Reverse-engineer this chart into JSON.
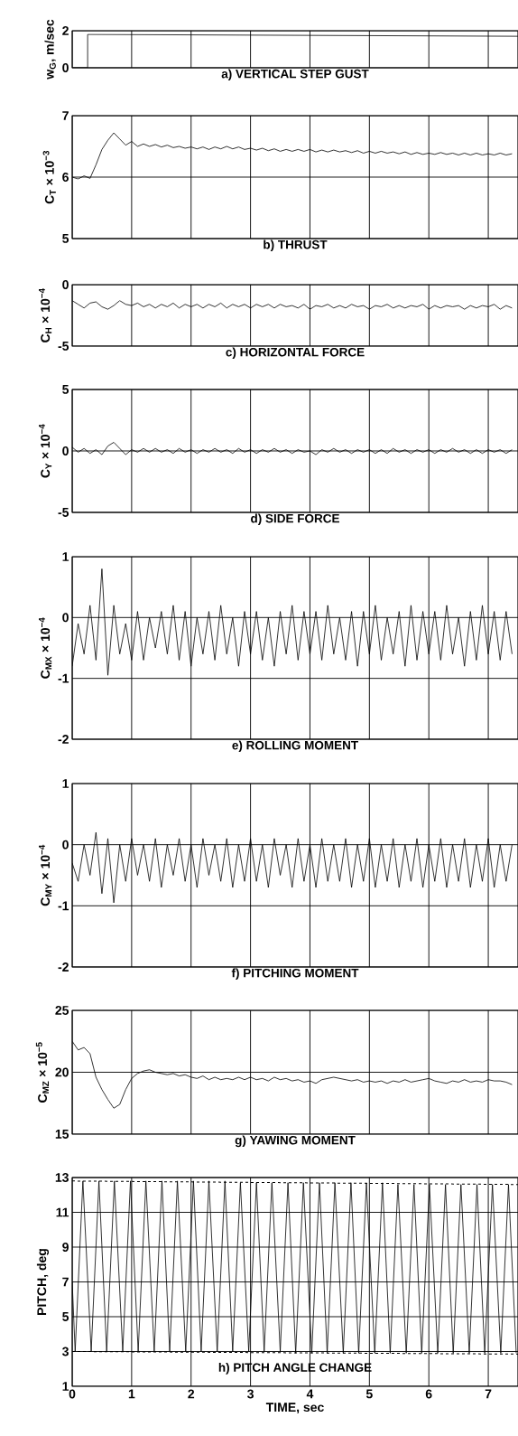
{
  "chart_data": [
    {
      "type": "line",
      "title": "a) VERTICAL STEP GUST",
      "ylabel": "w$_{G}$, m/sec",
      "xlim": [
        0,
        7.5
      ],
      "xticks": [
        0,
        1,
        2,
        3,
        4,
        5,
        6,
        7
      ],
      "ylim": [
        0,
        2
      ],
      "yticks": [
        0,
        2
      ],
      "grid": true,
      "tick_labels": "y",
      "color": "#000000",
      "x": [
        0,
        0.26,
        0.26,
        7.5
      ],
      "values": [
        0,
        0,
        1.8,
        1.7
      ]
    },
    {
      "type": "line",
      "title": "b) THRUST",
      "ylabel": "C$_{T}$ × 10$^{−3}$",
      "xlim": [
        0,
        7.5
      ],
      "xticks": [
        0,
        1,
        2,
        3,
        4,
        5,
        6,
        7
      ],
      "ylim": [
        5,
        7
      ],
      "yticks": [
        5,
        6,
        7
      ],
      "grid": true,
      "tick_labels": "y",
      "color": "#000000",
      "x": [
        0,
        0.1,
        0.2,
        0.3,
        0.4,
        0.5,
        0.6,
        0.7,
        0.8,
        0.9,
        1,
        1.1,
        1.2,
        1.3,
        1.4,
        1.5,
        1.6,
        1.7,
        1.8,
        1.9,
        2,
        2.1,
        2.2,
        2.3,
        2.4,
        2.5,
        2.6,
        2.7,
        2.8,
        2.9,
        3,
        3.1,
        3.2,
        3.3,
        3.4,
        3.5,
        3.6,
        3.7,
        3.8,
        3.9,
        4,
        4.1,
        4.2,
        4.3,
        4.4,
        4.5,
        4.6,
        4.7,
        4.8,
        4.9,
        5,
        5.1,
        5.2,
        5.3,
        5.4,
        5.5,
        5.6,
        5.7,
        5.8,
        5.9,
        6,
        6.1,
        6.2,
        6.3,
        6.4,
        6.5,
        6.6,
        6.7,
        6.8,
        6.9,
        7,
        7.1,
        7.2,
        7.3,
        7.4
      ],
      "values": [
        6.0,
        5.97,
        6.02,
        5.98,
        6.2,
        6.45,
        6.6,
        6.72,
        6.62,
        6.52,
        6.58,
        6.5,
        6.54,
        6.5,
        6.53,
        6.49,
        6.52,
        6.48,
        6.5,
        6.47,
        6.49,
        6.46,
        6.49,
        6.45,
        6.49,
        6.46,
        6.5,
        6.46,
        6.49,
        6.45,
        6.47,
        6.44,
        6.47,
        6.43,
        6.46,
        6.42,
        6.45,
        6.42,
        6.45,
        6.42,
        6.45,
        6.41,
        6.44,
        6.41,
        6.44,
        6.41,
        6.43,
        6.4,
        6.43,
        6.39,
        6.42,
        6.39,
        6.42,
        6.39,
        6.41,
        6.38,
        6.41,
        6.37,
        6.4,
        6.37,
        6.39,
        6.37,
        6.4,
        6.37,
        6.39,
        6.36,
        6.39,
        6.36,
        6.39,
        6.36,
        6.38,
        6.36,
        6.39,
        6.36,
        6.38
      ]
    },
    {
      "type": "line",
      "title": "c) HORIZONTAL FORCE",
      "ylabel": "C$_{H}$ × 10$^{−4}$",
      "xlim": [
        0,
        7.5
      ],
      "xticks": [
        0,
        1,
        2,
        3,
        4,
        5,
        6,
        7
      ],
      "ylim": [
        -5,
        0
      ],
      "yticks": [
        -5,
        0
      ],
      "grid": true,
      "tick_labels": "y",
      "color": "#000000",
      "x": [
        0,
        0.1,
        0.2,
        0.3,
        0.4,
        0.5,
        0.6,
        0.7,
        0.8,
        0.9,
        1,
        1.1,
        1.2,
        1.3,
        1.4,
        1.5,
        1.6,
        1.7,
        1.8,
        1.9,
        2,
        2.1,
        2.2,
        2.3,
        2.4,
        2.5,
        2.6,
        2.7,
        2.8,
        2.9,
        3,
        3.1,
        3.2,
        3.3,
        3.4,
        3.5,
        3.6,
        3.7,
        3.8,
        3.9,
        4,
        4.1,
        4.2,
        4.3,
        4.4,
        4.5,
        4.6,
        4.7,
        4.8,
        4.9,
        5,
        5.1,
        5.2,
        5.3,
        5.4,
        5.5,
        5.6,
        5.7,
        5.8,
        5.9,
        6,
        6.1,
        6.2,
        6.3,
        6.4,
        6.5,
        6.6,
        6.7,
        6.8,
        6.9,
        7,
        7.1,
        7.2,
        7.3,
        7.4
      ],
      "values": [
        -1.3,
        -1.6,
        -1.9,
        -1.5,
        -1.4,
        -1.8,
        -2.0,
        -1.7,
        -1.3,
        -1.6,
        -1.7,
        -1.5,
        -1.8,
        -1.6,
        -1.9,
        -1.6,
        -1.8,
        -1.5,
        -1.9,
        -1.6,
        -1.8,
        -1.6,
        -1.9,
        -1.6,
        -1.8,
        -1.5,
        -1.9,
        -1.6,
        -1.8,
        -1.6,
        -1.9,
        -1.6,
        -1.8,
        -1.6,
        -1.9,
        -1.6,
        -1.8,
        -1.7,
        -1.9,
        -1.6,
        -2.0,
        -1.7,
        -1.8,
        -1.6,
        -1.9,
        -1.7,
        -1.9,
        -1.6,
        -1.8,
        -1.7,
        -2.0,
        -1.7,
        -1.8,
        -1.6,
        -1.9,
        -1.7,
        -1.9,
        -1.7,
        -1.8,
        -1.6,
        -2.0,
        -1.7,
        -1.9,
        -1.7,
        -1.8,
        -1.7,
        -2.0,
        -1.7,
        -1.9,
        -1.7,
        -1.8,
        -1.6,
        -2.0,
        -1.7,
        -1.9
      ]
    },
    {
      "type": "line",
      "title": "d) SIDE FORCE",
      "ylabel": "C$_{Y}$ × 10$^{−4}$",
      "xlim": [
        0,
        7.5
      ],
      "xticks": [
        0,
        1,
        2,
        3,
        4,
        5,
        6,
        7
      ],
      "ylim": [
        -5,
        5
      ],
      "yticks": [
        -5,
        0,
        5
      ],
      "grid": true,
      "tick_labels": "y",
      "color": "#000000",
      "x": [
        0,
        0.1,
        0.2,
        0.3,
        0.4,
        0.5,
        0.6,
        0.7,
        0.8,
        0.9,
        1,
        1.1,
        1.2,
        1.3,
        1.4,
        1.5,
        1.6,
        1.7,
        1.8,
        1.9,
        2,
        2.1,
        2.2,
        2.3,
        2.4,
        2.5,
        2.6,
        2.7,
        2.8,
        2.9,
        3,
        3.1,
        3.2,
        3.3,
        3.4,
        3.5,
        3.6,
        3.7,
        3.8,
        3.9,
        4,
        4.1,
        4.2,
        4.3,
        4.4,
        4.5,
        4.6,
        4.7,
        4.8,
        4.9,
        5,
        5.1,
        5.2,
        5.3,
        5.4,
        5.5,
        5.6,
        5.7,
        5.8,
        5.9,
        6,
        6.1,
        6.2,
        6.3,
        6.4,
        6.5,
        6.6,
        6.7,
        6.8,
        6.9,
        7,
        7.1,
        7.2,
        7.3,
        7.4
      ],
      "values": [
        0.3,
        -0.1,
        0.2,
        -0.2,
        0.1,
        -0.3,
        0.4,
        0.7,
        0.2,
        -0.3,
        0.1,
        -0.1,
        0.2,
        -0.1,
        0.2,
        -0.1,
        0.1,
        -0.2,
        0.2,
        -0.1,
        0.1,
        -0.2,
        0.1,
        -0.1,
        0.2,
        -0.1,
        0.1,
        -0.2,
        0.2,
        -0.1,
        0.1,
        -0.2,
        0.1,
        -0.1,
        0.2,
        -0.1,
        0.1,
        -0.2,
        0.1,
        -0.1,
        0.0,
        -0.3,
        0.1,
        -0.1,
        0.2,
        -0.1,
        0.1,
        -0.2,
        0.1,
        -0.1,
        0.1,
        -0.2,
        0.1,
        -0.2,
        0.2,
        -0.1,
        0.1,
        -0.2,
        0.1,
        -0.1,
        0.1,
        -0.2,
        0.1,
        -0.1,
        0.2,
        -0.1,
        0.1,
        -0.2,
        0.1,
        -0.2,
        0.1,
        -0.1,
        0.1,
        -0.2,
        0.1
      ]
    },
    {
      "type": "line",
      "title": "e) ROLLING MOMENT",
      "ylabel": "C$_{MX}$ × 10$^{−4}$",
      "xlim": [
        0,
        7.5
      ],
      "xticks": [
        0,
        1,
        2,
        3,
        4,
        5,
        6,
        7
      ],
      "ylim": [
        -2,
        1
      ],
      "yticks": [
        -2,
        -1,
        0,
        1
      ],
      "grid": true,
      "tick_labels": "y",
      "color": "#000000",
      "x": [
        0,
        0.1,
        0.2,
        0.3,
        0.4,
        0.5,
        0.6,
        0.7,
        0.8,
        0.9,
        1,
        1.1,
        1.2,
        1.3,
        1.4,
        1.5,
        1.6,
        1.7,
        1.8,
        1.9,
        2,
        2.1,
        2.2,
        2.3,
        2.4,
        2.5,
        2.6,
        2.7,
        2.8,
        2.9,
        3,
        3.1,
        3.2,
        3.3,
        3.4,
        3.5,
        3.6,
        3.7,
        3.8,
        3.9,
        4,
        4.1,
        4.2,
        4.3,
        4.4,
        4.5,
        4.6,
        4.7,
        4.8,
        4.9,
        5,
        5.1,
        5.2,
        5.3,
        5.4,
        5.5,
        5.6,
        5.7,
        5.8,
        5.9,
        6,
        6.1,
        6.2,
        6.3,
        6.4,
        6.5,
        6.6,
        6.7,
        6.8,
        6.9,
        7,
        7.1,
        7.2,
        7.3,
        7.4
      ],
      "values": [
        -0.8,
        -0.1,
        -0.6,
        0.2,
        -0.7,
        0.8,
        -0.95,
        0.2,
        -0.6,
        -0.1,
        -0.7,
        0.1,
        -0.7,
        0.0,
        -0.5,
        0.1,
        -0.6,
        0.2,
        -0.7,
        0.1,
        -0.8,
        0.0,
        -0.6,
        0.1,
        -0.7,
        0.2,
        -0.6,
        0.0,
        -0.8,
        0.1,
        -0.6,
        0.1,
        -0.7,
        0.0,
        -0.8,
        0.1,
        -0.6,
        0.2,
        -0.7,
        0.1,
        -0.6,
        0.1,
        -0.7,
        0.2,
        -0.6,
        0.0,
        -0.7,
        0.1,
        -0.8,
        0.1,
        -0.6,
        0.2,
        -0.7,
        0.0,
        -0.6,
        0.1,
        -0.8,
        0.2,
        -0.7,
        0.1,
        -0.6,
        0.1,
        -0.7,
        0.2,
        -0.6,
        0.0,
        -0.8,
        0.1,
        -0.7,
        0.2,
        -0.6,
        0.1,
        -0.7,
        0.1,
        -0.6
      ]
    },
    {
      "type": "line",
      "title": "f) PITCHING MOMENT",
      "ylabel": "C$_{MY}$ × 10$^{−4}$",
      "xlim": [
        0,
        7.5
      ],
      "xticks": [
        0,
        1,
        2,
        3,
        4,
        5,
        6,
        7
      ],
      "ylim": [
        -2,
        1
      ],
      "yticks": [
        -2,
        -1,
        0,
        1
      ],
      "grid": true,
      "tick_labels": "y",
      "color": "#000000",
      "x": [
        0,
        0.1,
        0.2,
        0.3,
        0.4,
        0.5,
        0.6,
        0.7,
        0.8,
        0.9,
        1,
        1.1,
        1.2,
        1.3,
        1.4,
        1.5,
        1.6,
        1.7,
        1.8,
        1.9,
        2,
        2.1,
        2.2,
        2.3,
        2.4,
        2.5,
        2.6,
        2.7,
        2.8,
        2.9,
        3,
        3.1,
        3.2,
        3.3,
        3.4,
        3.5,
        3.6,
        3.7,
        3.8,
        3.9,
        4,
        4.1,
        4.2,
        4.3,
        4.4,
        4.5,
        4.6,
        4.7,
        4.8,
        4.9,
        5,
        5.1,
        5.2,
        5.3,
        5.4,
        5.5,
        5.6,
        5.7,
        5.8,
        5.9,
        6,
        6.1,
        6.2,
        6.3,
        6.4,
        6.5,
        6.6,
        6.7,
        6.8,
        6.9,
        7,
        7.1,
        7.2,
        7.3,
        7.4
      ],
      "values": [
        -0.3,
        -0.6,
        0.0,
        -0.5,
        0.2,
        -0.8,
        0.1,
        -0.95,
        0.0,
        -0.6,
        0.1,
        -0.5,
        0.0,
        -0.6,
        0.1,
        -0.7,
        0.0,
        -0.5,
        0.1,
        -0.6,
        0.0,
        -0.7,
        0.1,
        -0.5,
        0.0,
        -0.6,
        0.1,
        -0.7,
        0.0,
        -0.6,
        0.1,
        -0.6,
        0.0,
        -0.7,
        0.1,
        -0.5,
        0.0,
        -0.7,
        0.1,
        -0.6,
        0.0,
        -0.7,
        0.1,
        -0.6,
        0.0,
        -0.6,
        0.1,
        -0.7,
        0.0,
        -0.6,
        0.1,
        -0.7,
        0.0,
        -0.6,
        0.1,
        -0.7,
        0.0,
        -0.6,
        0.1,
        -0.7,
        0.0,
        -0.6,
        0.1,
        -0.7,
        0.0,
        -0.6,
        0.1,
        -0.7,
        0.0,
        -0.6,
        0.1,
        -0.7,
        0.0,
        -0.6,
        0.0
      ]
    },
    {
      "type": "line",
      "title": "g) YAWING MOMENT",
      "ylabel": "C$_{MZ}$ × 10$^{−5}$",
      "xlim": [
        0,
        7.5
      ],
      "xticks": [
        0,
        1,
        2,
        3,
        4,
        5,
        6,
        7
      ],
      "ylim": [
        15,
        25
      ],
      "yticks": [
        15,
        20,
        25
      ],
      "grid": true,
      "tick_labels": "y",
      "color": "#000000",
      "x": [
        0,
        0.1,
        0.2,
        0.3,
        0.4,
        0.5,
        0.6,
        0.7,
        0.8,
        0.9,
        1,
        1.1,
        1.2,
        1.3,
        1.4,
        1.5,
        1.6,
        1.7,
        1.8,
        1.9,
        2,
        2.1,
        2.2,
        2.3,
        2.4,
        2.5,
        2.6,
        2.7,
        2.8,
        2.9,
        3,
        3.1,
        3.2,
        3.3,
        3.4,
        3.5,
        3.6,
        3.7,
        3.8,
        3.9,
        4,
        4.1,
        4.2,
        4.3,
        4.4,
        4.5,
        4.6,
        4.7,
        4.8,
        4.9,
        5,
        5.1,
        5.2,
        5.3,
        5.4,
        5.5,
        5.6,
        5.7,
        5.8,
        5.9,
        6,
        6.1,
        6.2,
        6.3,
        6.4,
        6.5,
        6.6,
        6.7,
        6.8,
        6.9,
        7,
        7.1,
        7.2,
        7.3,
        7.4
      ],
      "values": [
        22.5,
        21.8,
        22.0,
        21.5,
        19.6,
        18.6,
        17.8,
        17.1,
        17.4,
        18.6,
        19.5,
        19.9,
        20.1,
        20.2,
        20.0,
        19.9,
        19.8,
        19.9,
        19.7,
        19.8,
        19.6,
        19.5,
        19.7,
        19.4,
        19.6,
        19.4,
        19.5,
        19.4,
        19.6,
        19.4,
        19.6,
        19.4,
        19.5,
        19.3,
        19.6,
        19.4,
        19.5,
        19.3,
        19.4,
        19.2,
        19.3,
        19.1,
        19.4,
        19.5,
        19.6,
        19.5,
        19.4,
        19.3,
        19.4,
        19.2,
        19.3,
        19.2,
        19.3,
        19.1,
        19.3,
        19.2,
        19.4,
        19.2,
        19.3,
        19.4,
        19.5,
        19.3,
        19.2,
        19.1,
        19.3,
        19.2,
        19.4,
        19.2,
        19.3,
        19.2,
        19.4,
        19.3,
        19.3,
        19.2,
        19.0
      ]
    },
    {
      "type": "line",
      "xlabel": "TIME, sec",
      "ylabel": "PITCH, deg",
      "annotations": [
        "h) PITCH ANGLE CHANGE"
      ],
      "xlim": [
        0,
        7.5
      ],
      "xticks": [
        0,
        1,
        2,
        3,
        4,
        5,
        6,
        7
      ],
      "ylim": [
        1,
        13
      ],
      "yticks": [
        1,
        3,
        5,
        7,
        9,
        11,
        13
      ],
      "grid": true,
      "series": [
        {
          "color": "#000000",
          "x": [
            0,
            0.05,
            0.18,
            0.32,
            0.45,
            0.58,
            0.71,
            0.85,
            0.98,
            1.11,
            1.24,
            1.38,
            1.51,
            1.64,
            1.77,
            1.91,
            2.04,
            2.17,
            2.3,
            2.44,
            2.57,
            2.7,
            2.83,
            2.97,
            3.1,
            3.23,
            3.36,
            3.5,
            3.63,
            3.76,
            3.89,
            4.03,
            4.16,
            4.29,
            4.42,
            4.56,
            4.69,
            4.82,
            4.95,
            5.09,
            5.22,
            5.35,
            5.48,
            5.62,
            5.75,
            5.88,
            6.01,
            6.15,
            6.28,
            6.41,
            6.54,
            6.68,
            6.81,
            6.94,
            7.07,
            7.21,
            7.34,
            7.47
          ],
          "values": [
            7,
            3.0,
            12.8,
            3.0,
            12.8,
            3.0,
            12.8,
            3.0,
            12.8,
            3.0,
            12.8,
            3.0,
            12.8,
            3.0,
            12.8,
            3.0,
            12.8,
            3.0,
            12.8,
            3.0,
            12.8,
            3.0,
            12.7,
            3.0,
            12.7,
            3.0,
            12.7,
            3.0,
            12.7,
            2.9,
            12.7,
            2.9,
            12.7,
            2.9,
            12.7,
            2.9,
            12.7,
            2.9,
            12.7,
            2.9,
            12.7,
            2.9,
            12.6,
            2.9,
            12.6,
            2.9,
            12.6,
            2.9,
            12.6,
            2.9,
            12.6,
            2.9,
            12.6,
            2.9,
            12.6,
            2.9,
            12.6,
            2.9
          ]
        },
        {
          "color": "#000000",
          "line_style": "dashed",
          "x": [
            0,
            7.5
          ],
          "values": [
            12.8,
            12.6
          ]
        },
        {
          "color": "#000000",
          "line_style": "dashed",
          "x": [
            0,
            7.5
          ],
          "values": [
            3.0,
            2.85
          ]
        }
      ]
    }
  ]
}
